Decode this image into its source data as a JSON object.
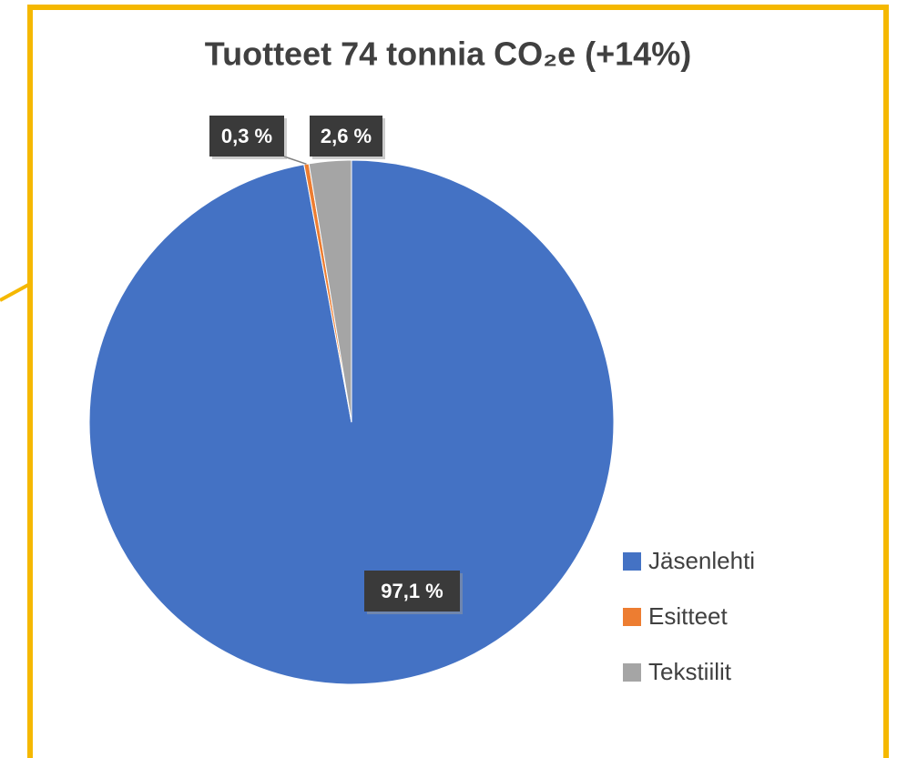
{
  "chart_data": {
    "type": "pie",
    "title": "Tuotteet 74 tonnia CO₂e (+14%)",
    "categories": [
      "Jäsenlehti",
      "Esitteet",
      "Tekstiilit"
    ],
    "values": [
      97.1,
      0.3,
      2.6
    ],
    "value_labels": [
      "97,1 %",
      "0,3 %",
      "2,6 %"
    ],
    "colors": [
      "#4472c4",
      "#ed7d31",
      "#a5a5a5"
    ],
    "legend": "right"
  }
}
